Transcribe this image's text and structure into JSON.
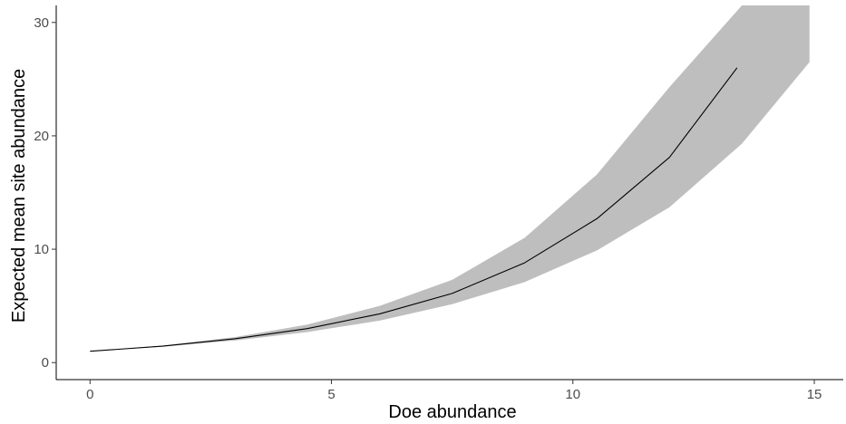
{
  "chart_data": {
    "type": "line",
    "xlabel": "Doe abundance",
    "ylabel": "Expected mean site abundance",
    "xlim": [
      -0.7,
      15.6
    ],
    "ylim": [
      -1.5,
      31.5
    ],
    "x_ticks": [
      0,
      5,
      10,
      15
    ],
    "y_ticks": [
      0,
      10,
      20,
      30
    ],
    "grid": false,
    "series": [
      {
        "x": [
          0,
          1.5,
          3,
          4.5,
          6,
          7.5,
          9,
          10.5,
          12,
          13.4
        ],
        "y": [
          1.0,
          1.45,
          2.1,
          3.0,
          4.3,
          6.1,
          8.8,
          12.7,
          18.1,
          26.0
        ],
        "ribbon_x": [
          0,
          1.5,
          3,
          4.5,
          6,
          7.5,
          9,
          10.5,
          12,
          13.5,
          14.9
        ],
        "ribbon_lower": [
          1.0,
          1.4,
          1.95,
          2.7,
          3.7,
          5.15,
          7.1,
          9.9,
          13.7,
          19.3,
          26.5
        ],
        "ribbon_upper": [
          1.0,
          1.5,
          2.25,
          3.35,
          5.0,
          7.3,
          11.0,
          16.6,
          24.3,
          31.5,
          31.5
        ],
        "line_color": "#000000",
        "ribbon_color": "#bebebe"
      }
    ]
  }
}
